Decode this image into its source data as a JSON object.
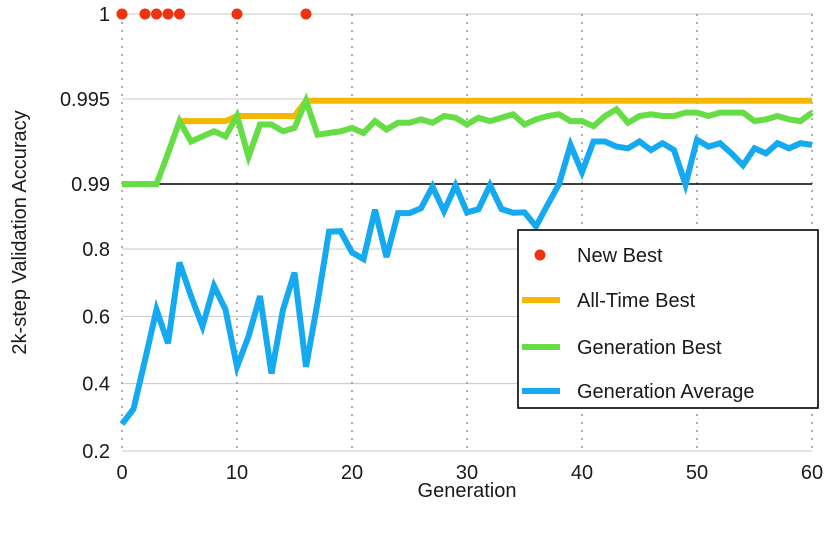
{
  "chart_data": {
    "type": "line",
    "xlabel": "Generation",
    "ylabel": "2k-step Validation Accuracy",
    "xlim": [
      0,
      60
    ],
    "x_ticks": [
      "0",
      "10",
      "20",
      "30",
      "40",
      "50",
      "60"
    ],
    "x_tick_values": [
      0,
      10,
      20,
      30,
      40,
      50,
      60
    ],
    "y_ticks": [
      "0.2",
      "0.4",
      "0.6",
      "0.8",
      "0.99",
      "0.995",
      "1"
    ],
    "y_scale": "piecewise-linear (0.2–0.8 and 0.99–1 segments)",
    "reference_line": 0.99,
    "grid": "dotted vertical at x ticks, solid horizontal at y ticks",
    "legend_position": "lower-right",
    "x": [
      0,
      1,
      2,
      3,
      4,
      5,
      6,
      7,
      8,
      9,
      10,
      11,
      12,
      13,
      14,
      15,
      16,
      17,
      18,
      19,
      20,
      21,
      22,
      23,
      24,
      25,
      26,
      27,
      28,
      29,
      30,
      31,
      32,
      33,
      34,
      35,
      36,
      37,
      38,
      39,
      40,
      41,
      42,
      43,
      44,
      45,
      46,
      47,
      48,
      49,
      50,
      51,
      52,
      53,
      54,
      55,
      56,
      57,
      58,
      59,
      60
    ],
    "series": [
      {
        "name": "All-Time Best",
        "color": "#f5b800",
        "start_index": 5,
        "values": [
          null,
          null,
          null,
          null,
          null,
          0.9937,
          0.9937,
          0.9937,
          0.9937,
          0.9937,
          0.994,
          0.994,
          0.994,
          0.994,
          0.994,
          0.994,
          0.9949,
          0.9949,
          0.9949,
          0.9949,
          0.9949,
          0.9949,
          0.9949,
          0.9949,
          0.9949,
          0.9949,
          0.9949,
          0.9949,
          0.9949,
          0.9949,
          0.9949,
          0.9949,
          0.9949,
          0.9949,
          0.9949,
          0.9949,
          0.9949,
          0.9949,
          0.9949,
          0.9949,
          0.9949,
          0.9949,
          0.9949,
          0.9949,
          0.9949,
          0.9949,
          0.9949,
          0.9949,
          0.9949,
          0.9949,
          0.9949,
          0.9949,
          0.9949,
          0.9949,
          0.9949,
          0.9949,
          0.9949,
          0.9949,
          0.9949,
          0.9949,
          0.9949
        ]
      },
      {
        "name": "Generation Best",
        "color": "#66dd44",
        "values": [
          0.9899,
          0.9898,
          0.9899,
          0.99,
          0.9918,
          0.9937,
          0.9925,
          0.9928,
          0.9931,
          0.9928,
          0.994,
          0.9916,
          0.9935,
          0.9935,
          0.9931,
          0.9933,
          0.9949,
          0.9929,
          0.993,
          0.9931,
          0.9933,
          0.993,
          0.9937,
          0.9932,
          0.9936,
          0.9936,
          0.9938,
          0.9936,
          0.994,
          0.9939,
          0.9935,
          0.9939,
          0.9937,
          0.9939,
          0.9941,
          0.9935,
          0.9938,
          0.994,
          0.9941,
          0.9937,
          0.9937,
          0.9934,
          0.994,
          0.9944,
          0.9936,
          0.994,
          0.9941,
          0.994,
          0.994,
          0.9942,
          0.9942,
          0.994,
          0.9942,
          0.9942,
          0.9942,
          0.9937,
          0.9938,
          0.994,
          0.9938,
          0.9937,
          0.9942
        ]
      },
      {
        "name": "Generation Average",
        "color": "#14a9f0",
        "values": [
          0.28,
          0.325,
          0.47,
          0.62,
          0.52,
          0.76,
          0.66,
          0.57,
          0.69,
          0.62,
          0.45,
          0.54,
          0.66,
          0.43,
          0.62,
          0.73,
          0.45,
          0.64,
          0.851,
          0.852,
          0.79,
          0.77,
          0.915,
          0.776,
          0.905,
          0.905,
          0.919,
          0.9825,
          0.9105,
          0.9855,
          0.907,
          0.916,
          0.9865,
          0.9165,
          0.906,
          0.907,
          0.866,
          0.9285,
          0.9895,
          0.9923,
          0.9907,
          0.9925,
          0.9925,
          0.9922,
          0.9921,
          0.9925,
          0.992,
          0.9924,
          0.992,
          0.9886,
          0.9926,
          0.9922,
          0.9924,
          0.9918,
          0.9911,
          0.9921,
          0.9918,
          0.9924,
          0.9921,
          0.9924,
          0.9923
        ]
      }
    ],
    "new_best_points": {
      "name": "New Best",
      "color": "#ee3311",
      "x": [
        0,
        2,
        3,
        4,
        5,
        10,
        16
      ],
      "y": [
        1,
        1,
        1,
        1,
        1,
        1,
        1
      ]
    },
    "legend": [
      "New Best",
      "All-Time Best",
      "Generation Best",
      "Generation Average"
    ]
  }
}
